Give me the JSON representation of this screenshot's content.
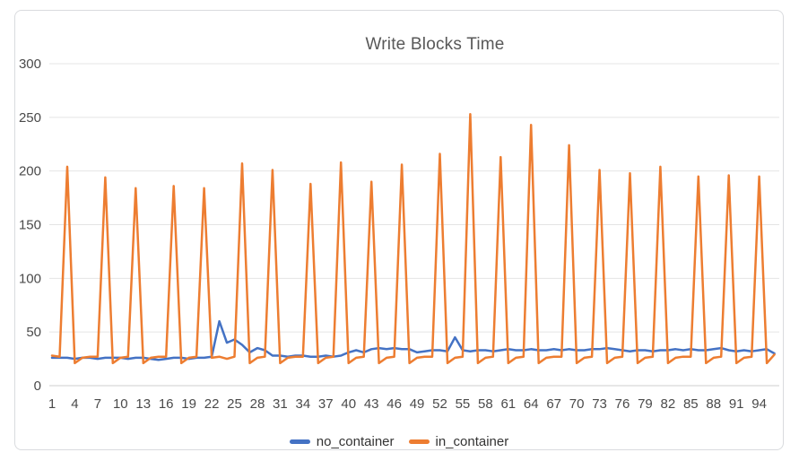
{
  "chart": {
    "title": "Write Blocks Time",
    "legend": {
      "no_container_label": "no_container",
      "in_container_label": "in_container"
    }
  },
  "chart_data": {
    "type": "line",
    "title": "Write Blocks Time",
    "x_start": 1,
    "x_end": 96,
    "x_tick_labels": [
      1,
      4,
      7,
      10,
      13,
      16,
      19,
      22,
      25,
      28,
      31,
      34,
      37,
      40,
      43,
      46,
      49,
      52,
      55,
      58,
      61,
      64,
      67,
      70,
      73,
      76,
      79,
      82,
      85,
      88,
      91,
      94
    ],
    "y_ticks": [
      0,
      50,
      100,
      150,
      200,
      250,
      300
    ],
    "ylim": [
      0,
      300
    ],
    "grid": true,
    "legend_position": "bottom",
    "colors": {
      "no_container": "#4472c4",
      "in_container": "#ed7d31",
      "gridline": "#e4e4e4",
      "zero_line": "#cfcfcf",
      "axis_text": "#4a4a4a",
      "title_text": "#585858"
    },
    "series": [
      {
        "name": "no_container",
        "color": "#4472c4",
        "values": [
          26,
          26,
          26,
          25,
          26,
          26,
          25,
          26,
          26,
          26,
          25,
          26,
          26,
          25,
          24,
          25,
          26,
          26,
          25,
          26,
          26,
          27,
          60,
          40,
          43,
          38,
          31,
          35,
          33,
          28,
          28,
          27,
          28,
          28,
          27,
          27,
          28,
          27,
          28,
          31,
          33,
          31,
          34,
          35,
          34,
          35,
          34,
          34,
          31,
          32,
          33,
          33,
          32,
          45,
          33,
          32,
          33,
          33,
          32,
          33,
          34,
          33,
          33,
          34,
          33,
          33,
          34,
          33,
          34,
          33,
          33,
          34,
          34,
          35,
          34,
          33,
          32,
          33,
          33,
          32,
          33,
          33,
          34,
          33,
          34,
          33,
          33,
          34,
          35,
          33,
          32,
          33,
          32,
          33,
          34,
          30
        ]
      },
      {
        "name": "in_container",
        "color": "#ed7d31",
        "values": [
          28,
          27,
          204,
          21,
          26,
          27,
          27,
          194,
          21,
          26,
          27,
          184,
          21,
          26,
          27,
          27,
          186,
          21,
          26,
          27,
          184,
          26,
          27,
          25,
          27,
          207,
          21,
          26,
          27,
          201,
          21,
          26,
          27,
          27,
          188,
          21,
          26,
          27,
          208,
          21,
          26,
          27,
          190,
          21,
          26,
          27,
          206,
          21,
          26,
          27,
          27,
          216,
          21,
          26,
          27,
          253,
          21,
          26,
          27,
          213,
          21,
          26,
          27,
          243,
          21,
          26,
          27,
          27,
          224,
          21,
          26,
          27,
          201,
          21,
          26,
          27,
          198,
          21,
          26,
          27,
          204,
          21,
          26,
          27,
          27,
          195,
          21,
          26,
          27,
          196,
          21,
          26,
          27,
          195,
          21,
          29
        ]
      }
    ]
  }
}
